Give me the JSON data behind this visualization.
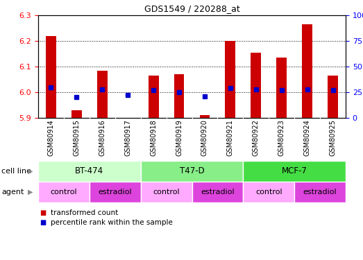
{
  "title": "GDS1549 / 220288_at",
  "samples": [
    "GSM80914",
    "GSM80915",
    "GSM80916",
    "GSM80917",
    "GSM80918",
    "GSM80919",
    "GSM80920",
    "GSM80921",
    "GSM80922",
    "GSM80923",
    "GSM80924",
    "GSM80925"
  ],
  "red_values": [
    6.22,
    5.93,
    6.085,
    5.9,
    6.065,
    6.07,
    5.91,
    6.2,
    6.155,
    6.135,
    6.265,
    6.065
  ],
  "blue_values": [
    30,
    20,
    28,
    22,
    27,
    25,
    21,
    29,
    28,
    27,
    28,
    27
  ],
  "ylim_left": [
    5.9,
    6.3
  ],
  "ylim_right": [
    0,
    100
  ],
  "yticks_left": [
    5.9,
    6.0,
    6.1,
    6.2,
    6.3
  ],
  "yticks_right": [
    0,
    25,
    50,
    75,
    100
  ],
  "cell_line_groups": [
    {
      "label": "BT-474",
      "start": 0,
      "end": 3,
      "color": "#ccffcc"
    },
    {
      "label": "T47-D",
      "start": 4,
      "end": 7,
      "color": "#88ee88"
    },
    {
      "label": "MCF-7",
      "start": 8,
      "end": 11,
      "color": "#44dd44"
    }
  ],
  "agent_groups": [
    {
      "label": "control",
      "start": 0,
      "end": 1,
      "color": "#ffaaff"
    },
    {
      "label": "estradiol",
      "start": 2,
      "end": 3,
      "color": "#dd44dd"
    },
    {
      "label": "control",
      "start": 4,
      "end": 5,
      "color": "#ffaaff"
    },
    {
      "label": "estradiol",
      "start": 6,
      "end": 7,
      "color": "#dd44dd"
    },
    {
      "label": "control",
      "start": 8,
      "end": 9,
      "color": "#ffaaff"
    },
    {
      "label": "estradiol",
      "start": 10,
      "end": 11,
      "color": "#dd44dd"
    }
  ],
  "bar_color": "#cc0000",
  "dot_color": "#0000cc",
  "plot_bg": "#ffffff",
  "xtick_bg": "#d0d0d0",
  "base_value": 5.9,
  "bar_width": 0.4
}
